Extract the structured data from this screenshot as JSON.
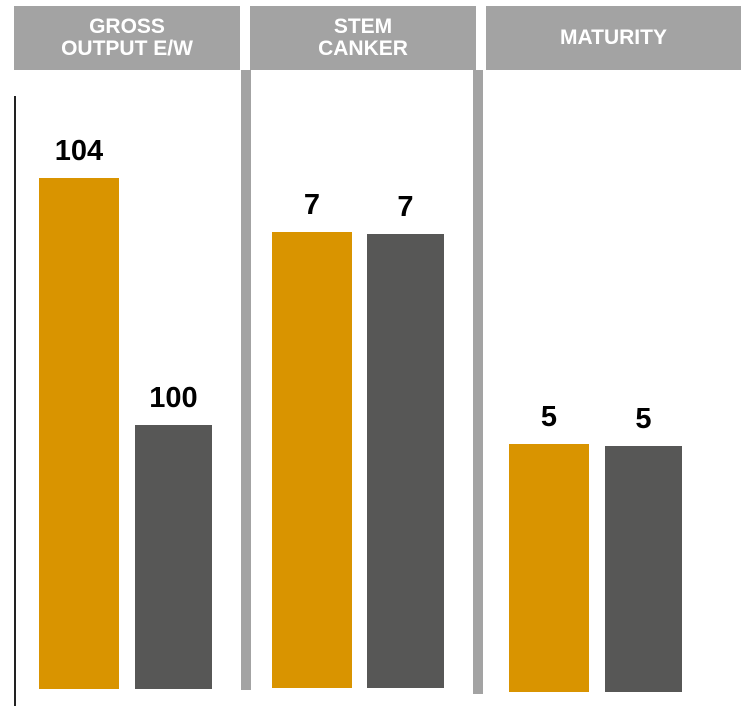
{
  "colors": {
    "primary": "#d99400",
    "secondary": "#575756",
    "header": "#a3a3a3"
  },
  "chart_data": {
    "type": "bar",
    "panels": [
      {
        "header_lines": [
          "GROSS",
          "OUTPUT E/W"
        ],
        "values": [
          104,
          100
        ]
      },
      {
        "header_lines": [
          "STEM",
          "CANKER"
        ],
        "values": [
          7,
          7
        ]
      },
      {
        "header_lines": [
          "MATURITY"
        ],
        "values": [
          5,
          5
        ]
      }
    ]
  }
}
